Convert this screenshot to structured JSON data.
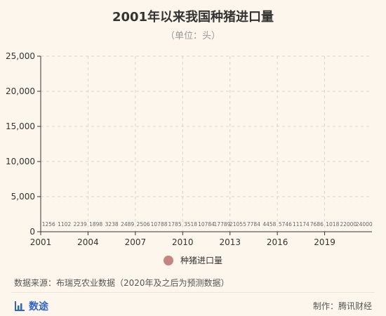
{
  "header": {
    "title": "2001年以来我国种猪进口量",
    "subtitle": "（单位：头）"
  },
  "footer": {
    "source": "数据来源：布瑞克农业数据（2020年及之后为预测数据）",
    "brand": "数途",
    "maker": "制作：腾讯财经"
  },
  "colors": {
    "background": "#fdf6ec",
    "series": "#c28583",
    "brand": "#2f63c7"
  },
  "chart_data": {
    "type": "bar",
    "categories": [
      "2001",
      "2002",
      "2003",
      "2004",
      "2005",
      "2006",
      "2007",
      "2008",
      "2009",
      "2010",
      "2011",
      "2012",
      "2013",
      "2014",
      "2015",
      "2016",
      "2017",
      "2018",
      "2019",
      "2020",
      "2021"
    ],
    "x_tick_labels": [
      "2001",
      "2004",
      "2007",
      "2010",
      "2013",
      "2016",
      "2019"
    ],
    "series": [
      {
        "name": "种猪进口量",
        "values": [
          1256,
          1102,
          2239,
          1898,
          3238,
          2489,
          2506,
          10788,
          1785,
          3518,
          10784,
          17789,
          21055,
          7784,
          4458,
          5746,
          11174,
          7686,
          1018,
          22000,
          24000
        ]
      }
    ],
    "data_labels": [
      "1256",
      "1102",
      "2239",
      "1898",
      "3238",
      "2489",
      "2506",
      "10788",
      "1785",
      "3518",
      "10784",
      "17789",
      "21055",
      "7784",
      "4458",
      "5746",
      "11174",
      "7686",
      "1018",
      "22000",
      "24000"
    ],
    "y_ticks": [
      "0",
      "5,000",
      "10,000",
      "15,000",
      "20,000",
      "25,000"
    ],
    "ylim": [
      0,
      25000
    ],
    "grid": "dashed",
    "legend": "bottom"
  }
}
